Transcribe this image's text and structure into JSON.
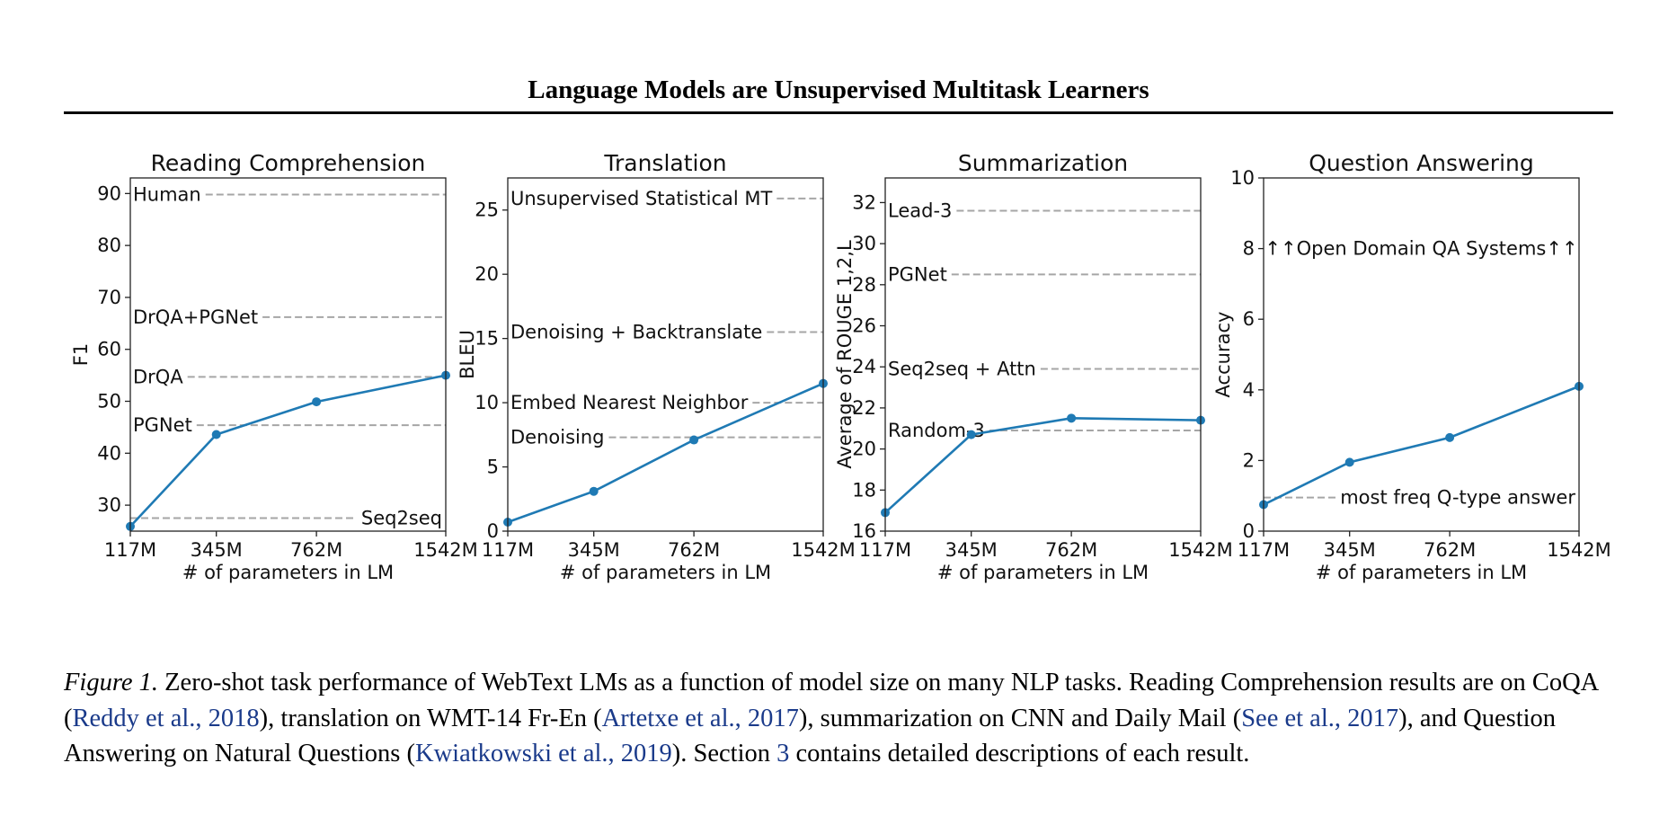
{
  "header": {
    "title": "Language Models are Unsupervised Multitask Learners"
  },
  "colors": {
    "line": "#1f7ab4",
    "reference": "#a6a6a6",
    "link": "#1a3a8a"
  },
  "chart_data": [
    {
      "type": "line",
      "title": "Reading Comprehension",
      "xlabel": "# of parameters in LM",
      "ylabel": "F1",
      "categories": [
        "117M",
        "345M",
        "762M",
        "1542M"
      ],
      "x_positions": [
        117,
        345,
        762,
        1542
      ],
      "x_scale": "sqrt",
      "ylim": [
        25,
        93
      ],
      "yticks": [
        30,
        40,
        50,
        60,
        70,
        80,
        90
      ],
      "series": [
        {
          "values": [
            25.9,
            43.6,
            49.9,
            55.0
          ]
        }
      ],
      "reference_lines": [
        {
          "label": "Human",
          "value": 89.8,
          "align": "left"
        },
        {
          "label": "DrQA+PGNet",
          "value": 66.2,
          "align": "left"
        },
        {
          "label": "DrQA",
          "value": 54.7,
          "align": "left"
        },
        {
          "label": "PGNet",
          "value": 45.4,
          "align": "left"
        },
        {
          "label": "Seq2seq",
          "value": 27.5,
          "align": "right"
        }
      ]
    },
    {
      "type": "line",
      "title": "Translation",
      "xlabel": "# of parameters in LM",
      "ylabel": "BLEU",
      "categories": [
        "117M",
        "345M",
        "762M",
        "1542M"
      ],
      "x_positions": [
        117,
        345,
        762,
        1542
      ],
      "x_scale": "sqrt",
      "ylim": [
        0,
        27.5
      ],
      "yticks": [
        0,
        5,
        10,
        15,
        20,
        25
      ],
      "series": [
        {
          "values": [
            0.7,
            3.1,
            7.1,
            11.5
          ]
        }
      ],
      "reference_lines": [
        {
          "label": "Unsupervised Statistical MT",
          "value": 25.9,
          "align": "left"
        },
        {
          "label": "Denoising + Backtranslate",
          "value": 15.5,
          "align": "left"
        },
        {
          "label": "Embed Nearest Neighbor",
          "value": 10.0,
          "align": "left"
        },
        {
          "label": "Denoising",
          "value": 7.3,
          "align": "left"
        }
      ]
    },
    {
      "type": "line",
      "title": "Summarization",
      "xlabel": "# of parameters in LM",
      "ylabel": "Average of ROUGE 1,2,L",
      "categories": [
        "117M",
        "345M",
        "762M",
        "1542M"
      ],
      "x_positions": [
        117,
        345,
        762,
        1542
      ],
      "x_scale": "sqrt",
      "ylim": [
        16,
        33.2
      ],
      "yticks": [
        16,
        18,
        20,
        22,
        24,
        26,
        28,
        30,
        32
      ],
      "series": [
        {
          "values": [
            16.9,
            20.7,
            21.5,
            21.4
          ]
        }
      ],
      "reference_lines": [
        {
          "label": "Lead-3",
          "value": 31.6,
          "align": "left"
        },
        {
          "label": "PGNet",
          "value": 28.5,
          "align": "left"
        },
        {
          "label": "Seq2seq + Attn",
          "value": 23.9,
          "align": "left"
        },
        {
          "label": "Random-3",
          "value": 20.9,
          "align": "left"
        }
      ]
    },
    {
      "type": "line",
      "title": "Question Answering",
      "xlabel": "# of parameters in LM",
      "ylabel": "Accuracy",
      "categories": [
        "117M",
        "345M",
        "762M",
        "1542M"
      ],
      "x_positions": [
        117,
        345,
        762,
        1542
      ],
      "x_scale": "sqrt",
      "ylim": [
        0,
        10
      ],
      "yticks": [
        0,
        2,
        4,
        6,
        8,
        10
      ],
      "series": [
        {
          "values": [
            0.75,
            1.95,
            2.65,
            4.1
          ]
        }
      ],
      "reference_lines": [
        {
          "label": "most freq Q-type answer",
          "value": 0.95,
          "align": "right"
        }
      ],
      "annotations": [
        "↑↑Open Domain QA Systems↑↑"
      ]
    }
  ],
  "caption": {
    "label": "Figure 1.",
    "t1": " Zero-shot task performance of WebText LMs as a function of model size on many NLP tasks. Reading Comprehension results are on CoQA (",
    "ref1": "Reddy et al., 2018",
    "t2": "), translation on WMT-14 Fr-En (",
    "ref2": "Artetxe et al., 2017",
    "t3": "), summarization on CNN and Daily Mail (",
    "ref3": "See et al., 2017",
    "t4": "), and Question Answering on Natural Questions (",
    "ref4": "Kwiatkowski et al., 2019",
    "t5": "). Section ",
    "ref5": "3",
    "t6": " contains detailed descriptions of each result."
  }
}
